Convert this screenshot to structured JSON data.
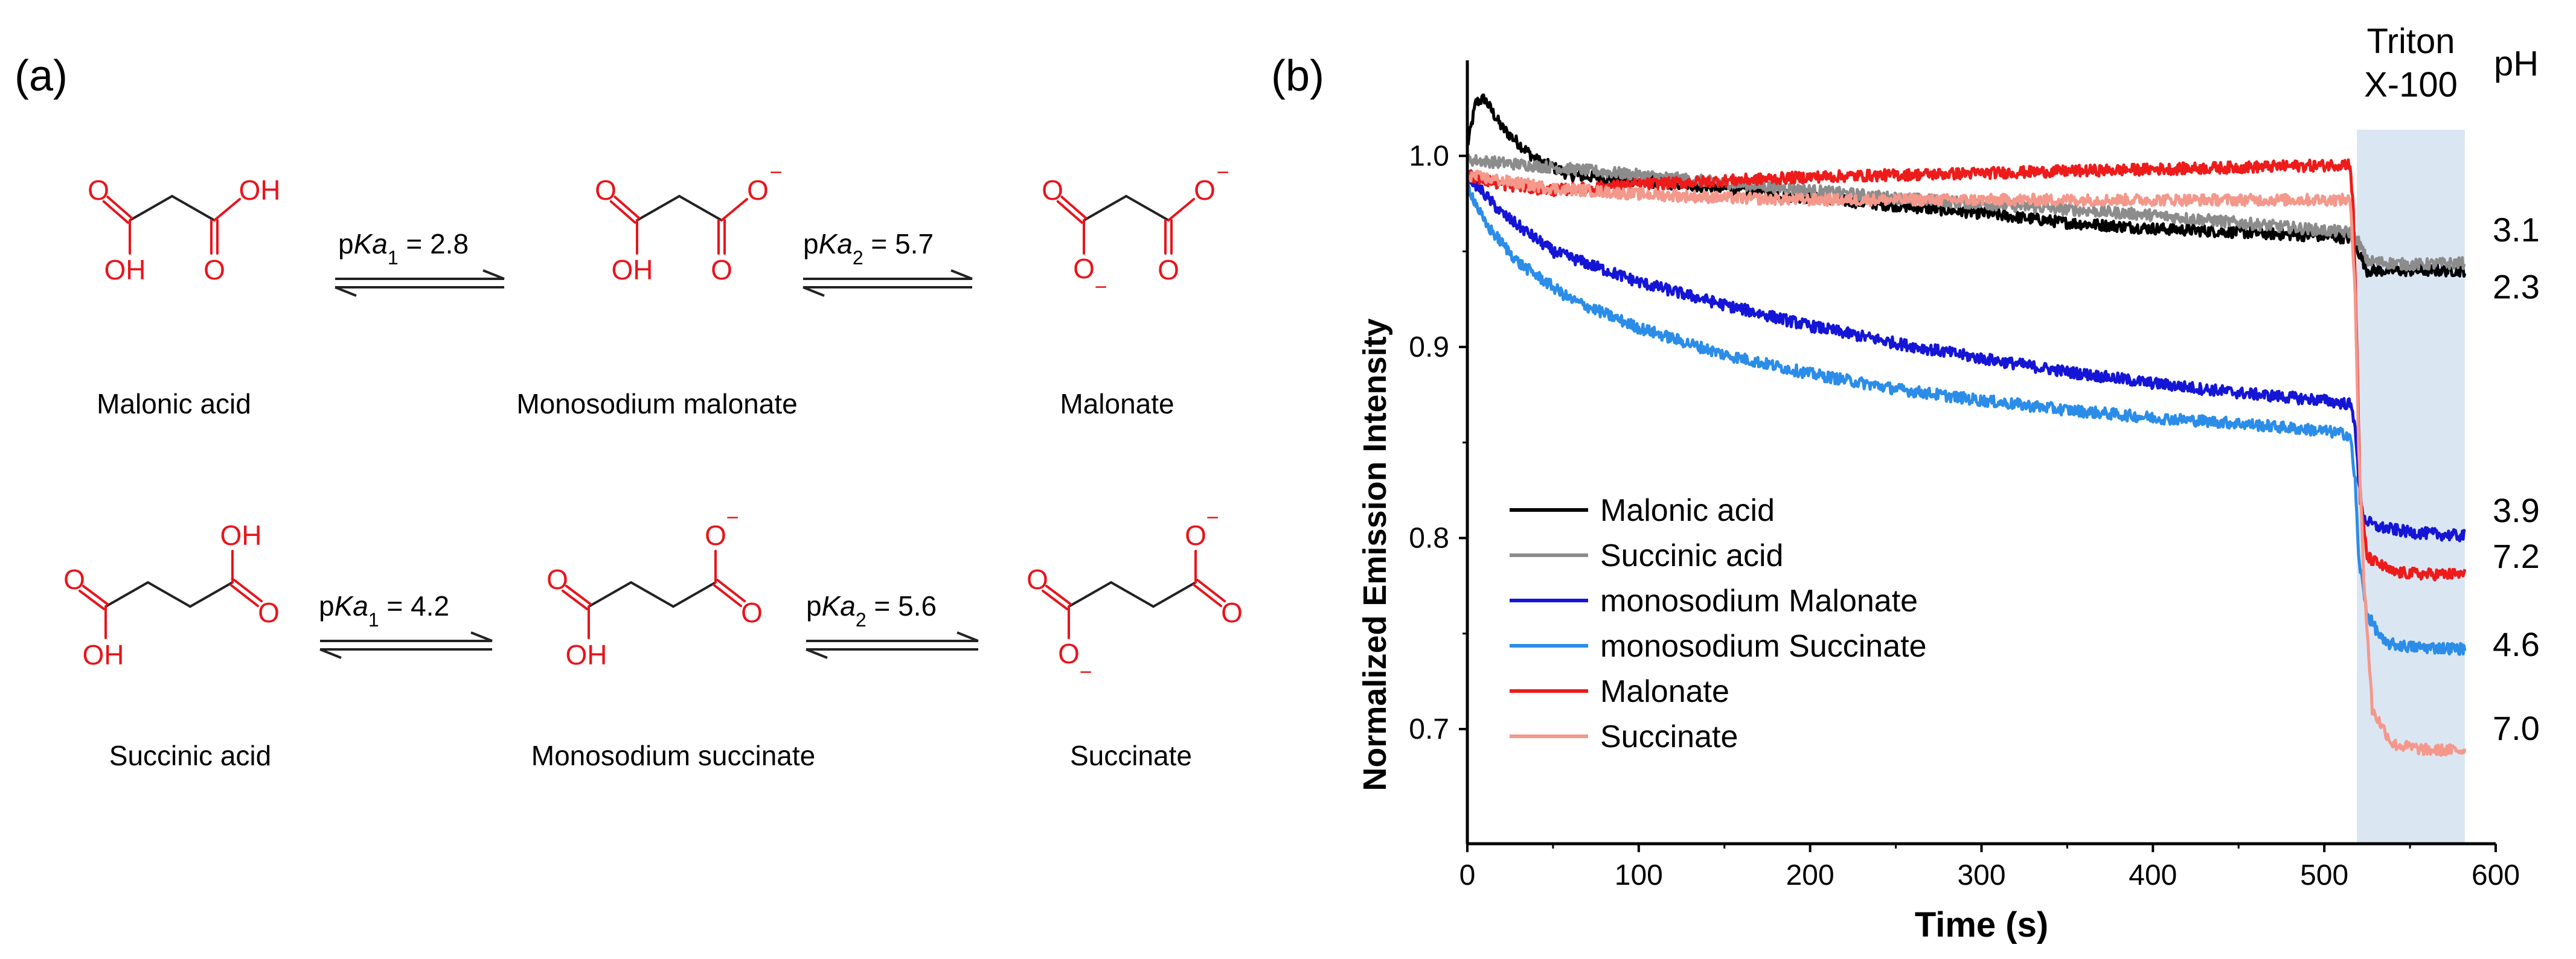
{
  "panel_a": {
    "label": "(a)",
    "row1": {
      "names": [
        "Malonic acid",
        "Monosodium malonate",
        "Malonate"
      ],
      "eq1": {
        "prefix": "p",
        "italic": "Ka",
        "sub": "1",
        "value": " = 2.8"
      },
      "eq2": {
        "prefix": "p",
        "italic": "Ka",
        "sub": "2",
        "value": " = 5.7"
      }
    },
    "row2": {
      "names": [
        "Succinic acid",
        "Monosodium succinate",
        "Succinate"
      ],
      "eq1": {
        "prefix": "p",
        "italic": "Ka",
        "sub": "1",
        "value": " = 4.2"
      },
      "eq2": {
        "prefix": "p",
        "italic": "Ka",
        "sub": "2",
        "value": " = 5.6"
      }
    },
    "atoms": {
      "O": "O",
      "OH": "OH",
      "minus": "−"
    }
  },
  "colors": {
    "acid_red": "#e8141b"
  },
  "chart_data": {
    "type": "line",
    "panel_label": "(b)",
    "xlabel": "Time (s)",
    "ylabel": "Normalized Emission Intensity",
    "xlim": [
      0,
      600
    ],
    "ylim": [
      0.64,
      1.05
    ],
    "xticks": [
      0,
      100,
      200,
      300,
      400,
      500,
      600
    ],
    "yticks": [
      0.7,
      0.8,
      0.9,
      1.0
    ],
    "ytick_labels": [
      "0.7",
      "0.8",
      "0.9",
      "1.0"
    ],
    "grid": false,
    "shaded_region": {
      "x_start": 519,
      "x_end": 582,
      "label_line1": "Triton",
      "label_line2": "X-100",
      "color": "#dbe6f3"
    },
    "ph_header": "pH",
    "legend_position": "bottom-left",
    "series": [
      {
        "name": "Malonic acid",
        "color": "#000000",
        "ph": "2.3",
        "ph_y": 0.931,
        "points": [
          [
            0,
            1.005
          ],
          [
            5,
            1.028
          ],
          [
            10,
            1.03
          ],
          [
            20,
            1.015
          ],
          [
            40,
            0.998
          ],
          [
            60,
            0.99
          ],
          [
            100,
            0.987
          ],
          [
            150,
            0.983
          ],
          [
            200,
            0.978
          ],
          [
            250,
            0.974
          ],
          [
            300,
            0.97
          ],
          [
            350,
            0.965
          ],
          [
            400,
            0.962
          ],
          [
            450,
            0.96
          ],
          [
            500,
            0.958
          ],
          [
            515,
            0.957
          ],
          [
            520,
            0.95
          ],
          [
            525,
            0.94
          ],
          [
            550,
            0.94
          ],
          [
            582,
            0.94
          ]
        ]
      },
      {
        "name": "Succinic acid",
        "color": "#8c8c8c",
        "ph": "3.1",
        "ph_y": 0.961,
        "points": [
          [
            0,
            0.998
          ],
          [
            50,
            0.994
          ],
          [
            100,
            0.99
          ],
          [
            150,
            0.986
          ],
          [
            200,
            0.982
          ],
          [
            250,
            0.978
          ],
          [
            300,
            0.975
          ],
          [
            350,
            0.972
          ],
          [
            400,
            0.969
          ],
          [
            450,
            0.965
          ],
          [
            500,
            0.961
          ],
          [
            515,
            0.96
          ],
          [
            520,
            0.955
          ],
          [
            525,
            0.945
          ],
          [
            550,
            0.943
          ],
          [
            582,
            0.944
          ]
        ]
      },
      {
        "name": "monosodium Malonate",
        "color": "#1515d6",
        "ph": "3.9",
        "ph_y": 0.814,
        "points": [
          [
            0,
            0.99
          ],
          [
            20,
            0.97
          ],
          [
            50,
            0.95
          ],
          [
            100,
            0.934
          ],
          [
            150,
            0.922
          ],
          [
            200,
            0.911
          ],
          [
            250,
            0.902
          ],
          [
            300,
            0.894
          ],
          [
            350,
            0.887
          ],
          [
            400,
            0.881
          ],
          [
            450,
            0.876
          ],
          [
            500,
            0.872
          ],
          [
            515,
            0.87
          ],
          [
            518,
            0.86
          ],
          [
            520,
            0.83
          ],
          [
            523,
            0.81
          ],
          [
            530,
            0.806
          ],
          [
            550,
            0.803
          ],
          [
            582,
            0.801
          ]
        ]
      },
      {
        "name": "monosodium Succinate",
        "color": "#2b8de8",
        "ph": "4.6",
        "ph_y": 0.744,
        "points": [
          [
            0,
            0.985
          ],
          [
            10,
            0.965
          ],
          [
            30,
            0.944
          ],
          [
            60,
            0.925
          ],
          [
            100,
            0.91
          ],
          [
            150,
            0.896
          ],
          [
            200,
            0.886
          ],
          [
            250,
            0.878
          ],
          [
            300,
            0.872
          ],
          [
            350,
            0.867
          ],
          [
            400,
            0.863
          ],
          [
            450,
            0.86
          ],
          [
            500,
            0.856
          ],
          [
            515,
            0.854
          ],
          [
            518,
            0.83
          ],
          [
            520,
            0.79
          ],
          [
            525,
            0.76
          ],
          [
            535,
            0.745
          ],
          [
            550,
            0.743
          ],
          [
            582,
            0.742
          ]
        ]
      },
      {
        "name": "Malonate",
        "color": "#ee1b1b",
        "ph": "7.2",
        "ph_y": 0.79,
        "points": [
          [
            0,
            0.99
          ],
          [
            20,
            0.985
          ],
          [
            50,
            0.982
          ],
          [
            100,
            0.985
          ],
          [
            150,
            0.987
          ],
          [
            200,
            0.989
          ],
          [
            250,
            0.99
          ],
          [
            300,
            0.991
          ],
          [
            350,
            0.992
          ],
          [
            400,
            0.993
          ],
          [
            450,
            0.994
          ],
          [
            500,
            0.995
          ],
          [
            515,
            0.996
          ],
          [
            517,
            0.97
          ],
          [
            519,
            0.9
          ],
          [
            521,
            0.82
          ],
          [
            525,
            0.79
          ],
          [
            540,
            0.782
          ],
          [
            560,
            0.781
          ],
          [
            582,
            0.781
          ]
        ]
      },
      {
        "name": "Succinate",
        "color": "#f4988b",
        "ph": "7.0",
        "ph_y": 0.7,
        "points": [
          [
            0,
            0.99
          ],
          [
            20,
            0.987
          ],
          [
            50,
            0.983
          ],
          [
            100,
            0.98
          ],
          [
            150,
            0.978
          ],
          [
            200,
            0.977
          ],
          [
            250,
            0.977
          ],
          [
            300,
            0.977
          ],
          [
            350,
            0.977
          ],
          [
            400,
            0.977
          ],
          [
            450,
            0.977
          ],
          [
            500,
            0.977
          ],
          [
            515,
            0.977
          ],
          [
            518,
            0.93
          ],
          [
            520,
            0.85
          ],
          [
            523,
            0.78
          ],
          [
            528,
            0.71
          ],
          [
            540,
            0.692
          ],
          [
            560,
            0.689
          ],
          [
            582,
            0.689
          ]
        ]
      }
    ]
  }
}
